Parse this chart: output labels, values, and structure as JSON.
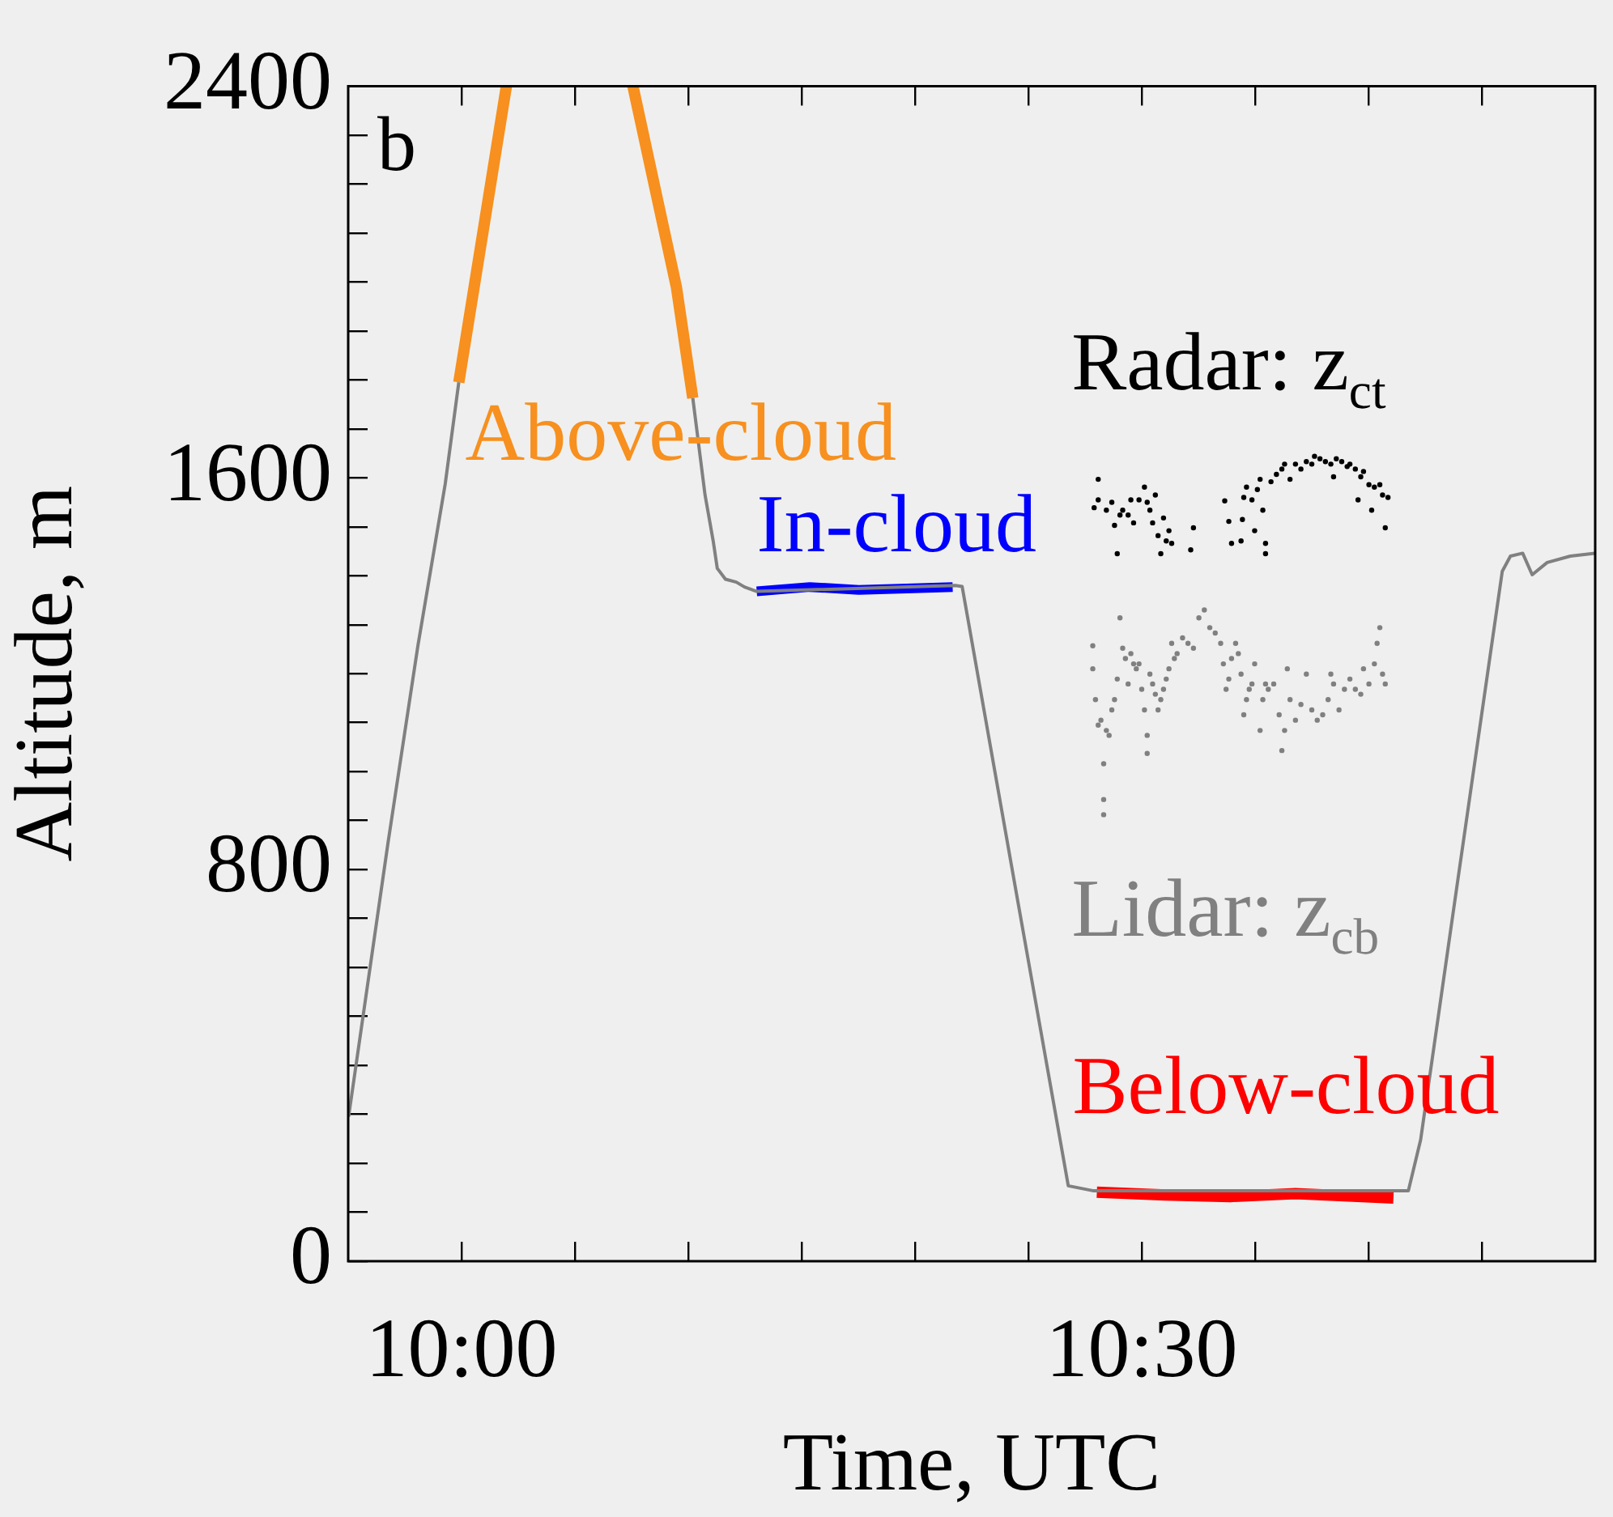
{
  "chart_data": {
    "type": "line",
    "xlabel": "Time, UTC",
    "ylabel": "Altitude, m",
    "annotations": [
      "b"
    ],
    "xlim": [
      9.9167,
      10.8333
    ],
    "ylim": [
      0,
      2400
    ],
    "xticks": [
      {
        "value": 10,
        "label": "10:00"
      },
      {
        "value": 10.0833,
        "label": null
      },
      {
        "value": 10.1667,
        "label": null
      },
      {
        "value": 10.25,
        "label": null
      },
      {
        "value": 10.3333,
        "label": null
      },
      {
        "value": 10.4167,
        "label": null
      },
      {
        "value": 10.5,
        "label": "10:30"
      },
      {
        "value": 10.5833,
        "label": null
      },
      {
        "value": 10.6667,
        "label": null
      },
      {
        "value": 10.75,
        "label": null
      }
    ],
    "yticks": [
      0,
      {
        "value": 100,
        "label": null
      },
      {
        "value": 200,
        "label": null
      },
      {
        "value": 300,
        "label": null
      },
      {
        "value": 400,
        "label": null
      },
      {
        "value": 500,
        "label": null
      },
      {
        "value": 600,
        "label": null
      },
      {
        "value": 700,
        "label": null
      },
      800,
      {
        "value": 900,
        "label": null
      },
      {
        "value": 1000,
        "label": null
      },
      {
        "value": 1100,
        "label": null
      },
      {
        "value": 1200,
        "label": null
      },
      {
        "value": 1300,
        "label": null
      },
      {
        "value": 1400,
        "label": null
      },
      {
        "value": 1500,
        "label": null
      },
      1600,
      {
        "value": 1700,
        "label": null
      },
      {
        "value": 1800,
        "label": null
      },
      {
        "value": 1900,
        "label": null
      },
      {
        "value": 2000,
        "label": null
      },
      {
        "value": 2100,
        "label": null
      },
      {
        "value": 2200,
        "label": null
      },
      {
        "value": 2300,
        "label": null
      },
      2400
    ],
    "grid": false,
    "legend": false,
    "series": [
      {
        "type": "line",
        "color": "#808080",
        "x": [
          9.917,
          9.946,
          9.968,
          9.988,
          9.998,
          10.08,
          10.17,
          10.179,
          10.185,
          10.188,
          10.194,
          10.202,
          10.208,
          10.217,
          10.363,
          10.368,
          10.407,
          10.446,
          10.464,
          10.696,
          10.705,
          10.732,
          10.765,
          10.771,
          10.78,
          10.787,
          10.798,
          10.815,
          10.833
        ],
        "values": [
          295,
          855,
          1258,
          1587,
          1795,
          null,
          1763,
          1565,
          1471,
          1415,
          1393,
          1387,
          1377,
          1368,
          1380,
          1378,
          765,
          154,
          144,
          144,
          248,
          772,
          1409,
          1440,
          1446,
          1402,
          1427,
          1440,
          1446
        ]
      },
      {
        "type": "line",
        "name": "Above-cloud",
        "color": "#f7901e",
        "x": [
          9.998,
          10.033,
          10.08,
          10.126,
          10.158,
          10.17
        ],
        "values": [
          1795,
          2400,
          null,
          2400,
          1989,
          1763
        ]
      },
      {
        "type": "line",
        "name": "In-cloud",
        "color": "#0000ff",
        "x": [
          10.217,
          10.256,
          10.292,
          10.327,
          10.361
        ],
        "values": [
          1368,
          1377,
          1371,
          1374,
          1377
        ]
      },
      {
        "type": "line",
        "name": "Below-cloud",
        "color": "#ff0000",
        "x": [
          10.467,
          10.518,
          10.565,
          10.613,
          10.685
        ],
        "values": [
          141,
          135,
          132,
          138,
          129
        ]
      },
      {
        "type": "scatter",
        "name": "Radar: z$_{ct}$",
        "color": "#000000",
        "marker": "circle",
        "x": [
          10.465,
          10.468,
          10.468,
          10.474,
          10.478,
          10.48,
          10.482,
          10.484,
          10.486,
          10.49,
          10.492,
          10.494,
          10.498,
          10.502,
          10.504,
          10.506,
          10.508,
          10.51,
          10.512,
          10.514,
          10.516,
          10.518,
          10.52,
          10.522,
          10.536,
          10.538,
          10.561,
          10.564,
          10.566,
          10.573,
          10.574,
          10.575,
          10.577,
          10.581,
          10.583,
          10.585,
          10.587,
          10.589,
          10.591,
          10.591,
          10.595,
          10.599,
          10.603,
          10.605,
          10.609,
          10.613,
          10.617,
          10.621,
          10.625,
          10.627,
          10.631,
          10.635,
          10.639,
          10.641,
          10.643,
          10.647,
          10.651,
          10.653,
          10.657,
          10.659,
          10.661,
          10.663,
          10.667,
          10.669,
          10.671,
          10.675,
          10.677,
          10.679,
          10.681
        ],
        "values": [
          1539,
          1597,
          1555,
          1534,
          1550,
          1503,
          1445,
          1524,
          1534,
          1524,
          1555,
          1508,
          1555,
          1581,
          1550,
          1534,
          1508,
          1565,
          1482,
          1445,
          1518,
          1471,
          1492,
          1466,
          1453,
          1498,
          1553,
          1511,
          1466,
          1471,
          1515,
          1560,
          1581,
          1555,
          1492,
          1576,
          1597,
          1534,
          1466,
          1445,
          1592,
          1607,
          1618,
          1628,
          1597,
          1628,
          1618,
          1633,
          1628,
          1644,
          1639,
          1633,
          1628,
          1602,
          1639,
          1633,
          1623,
          1628,
          1618,
          1555,
          1602,
          1613,
          1586,
          1534,
          1581,
          1586,
          1565,
          1498,
          1560
        ]
      },
      {
        "type": "scatter",
        "name": "Lidar: z$_{cb}$",
        "color": "#808080",
        "marker": "circle",
        "x": [
          10.464,
          10.464,
          10.466,
          10.468,
          10.47,
          10.472,
          10.472,
          10.472,
          10.474,
          10.476,
          10.478,
          10.48,
          10.482,
          10.484,
          10.486,
          10.488,
          10.49,
          10.492,
          10.494,
          10.496,
          10.498,
          10.5,
          10.502,
          10.504,
          10.504,
          10.506,
          10.508,
          10.51,
          10.512,
          10.514,
          10.516,
          10.518,
          10.52,
          10.522,
          10.524,
          10.526,
          10.53,
          10.534,
          10.538,
          10.542,
          10.546,
          10.55,
          10.554,
          10.558,
          10.56,
          10.562,
          10.564,
          10.566,
          10.569,
          10.571,
          10.573,
          10.575,
          10.577,
          10.579,
          10.581,
          10.583,
          10.587,
          10.589,
          10.591,
          10.593,
          10.597,
          10.601,
          10.603,
          10.605,
          10.607,
          10.609,
          10.613,
          10.617,
          10.621,
          10.625,
          10.629,
          10.633,
          10.637,
          10.639,
          10.641,
          10.645,
          10.649,
          10.653,
          10.657,
          10.661,
          10.663,
          10.667,
          10.671,
          10.673,
          10.675,
          10.677,
          10.679
        ],
        "values": [
          1257,
          1210,
          1147,
          1095,
          1105,
          1016,
          943,
          912,
          1084,
          1074,
          1126,
          1147,
          1189,
          1314,
          1252,
          1231,
          1179,
          1241,
          1220,
          1210,
          1220,
          1168,
          1126,
          1074,
          1037,
          1199,
          1179,
          1158,
          1126,
          1147,
          1168,
          1189,
          1210,
          1262,
          1231,
          1241,
          1273,
          1262,
          1252,
          1314,
          1330,
          1294,
          1283,
          1262,
          1220,
          1168,
          1189,
          1231,
          1262,
          1241,
          1199,
          1116,
          1147,
          1168,
          1179,
          1220,
          1084,
          1147,
          1179,
          1168,
          1179,
          1116,
          1043,
          1084,
          1210,
          1147,
          1105,
          1137,
          1199,
          1126,
          1105,
          1116,
          1147,
          1199,
          1179,
          1126,
          1168,
          1189,
          1168,
          1158,
          1210,
          1179,
          1220,
          1262,
          1294,
          1199,
          1179
        ]
      }
    ]
  }
}
